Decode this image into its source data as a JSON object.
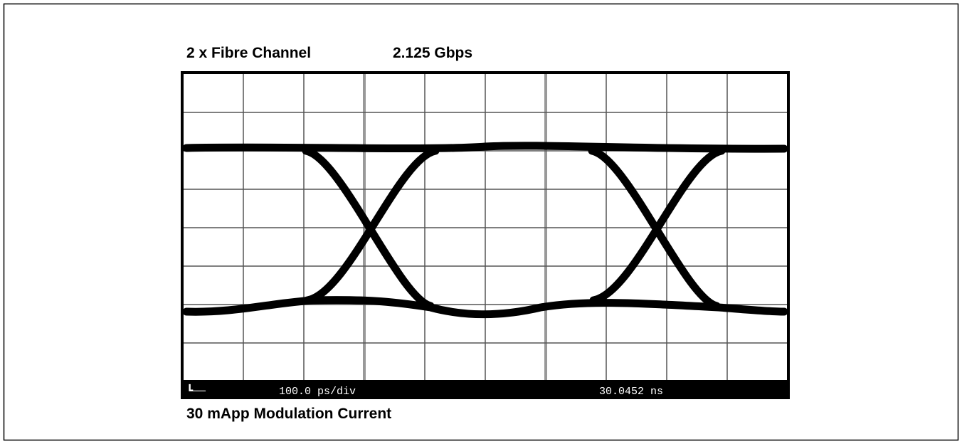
{
  "header": {
    "title": "2 x Fibre Channel",
    "rate": "2.125 Gbps"
  },
  "scope": {
    "timebase": "100.0 ps/div",
    "time": "30.0452 ns"
  },
  "caption": "30 mApp Modulation Current"
}
